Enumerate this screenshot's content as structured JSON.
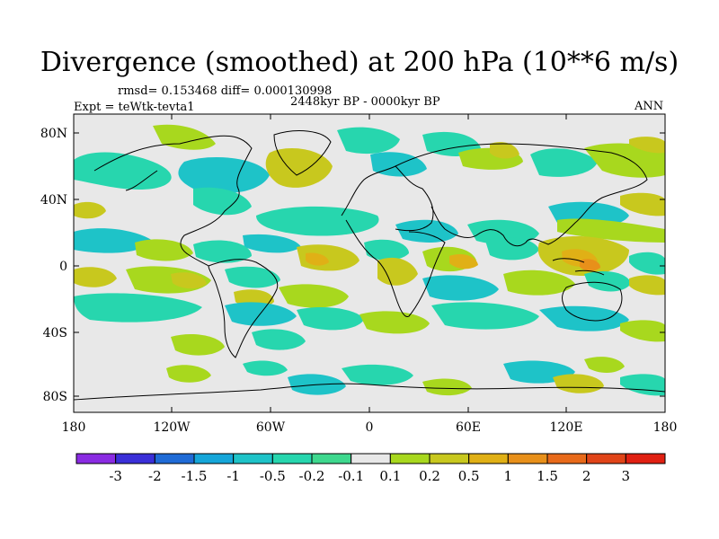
{
  "title": "Divergence (smoothed) at 200 hPa (10**6 m/s)",
  "stats": "rmsd= 0.153468 diff= 0.000130998",
  "experiment": "Expt = teWtk-tevta1",
  "period": "2448kyr BP - 0000kyr BP",
  "season": "ANN",
  "lat_ticks": [
    "80N",
    "40N",
    "0",
    "40S",
    "80S"
  ],
  "lon_ticks": [
    "180",
    "120W",
    "60W",
    "0",
    "60E",
    "120E",
    "180"
  ],
  "legend": {
    "labels": [
      "-3",
      "-2",
      "-1.5",
      "-1",
      "-0.5",
      "-0.2",
      "-0.1",
      "0.1",
      "0.2",
      "0.5",
      "1",
      "1.5",
      "2",
      "3"
    ],
    "colors": [
      "#8a2be2",
      "#3a2fd8",
      "#1f6bd6",
      "#15a6d9",
      "#1ec3c8",
      "#27d6ae",
      "#3ed88e",
      "#e8e8e8",
      "#a8d81e",
      "#c8c81e",
      "#e0b016",
      "#e8901a",
      "#e86a1a",
      "#e04418",
      "#e02012"
    ]
  },
  "colors": {
    "neutral": "#e8e8e8",
    "teal": "#27d6ae",
    "cyan": "#1ec3c8",
    "green": "#a8d81e",
    "olive": "#c8c81e",
    "orange": "#e0b016"
  }
}
